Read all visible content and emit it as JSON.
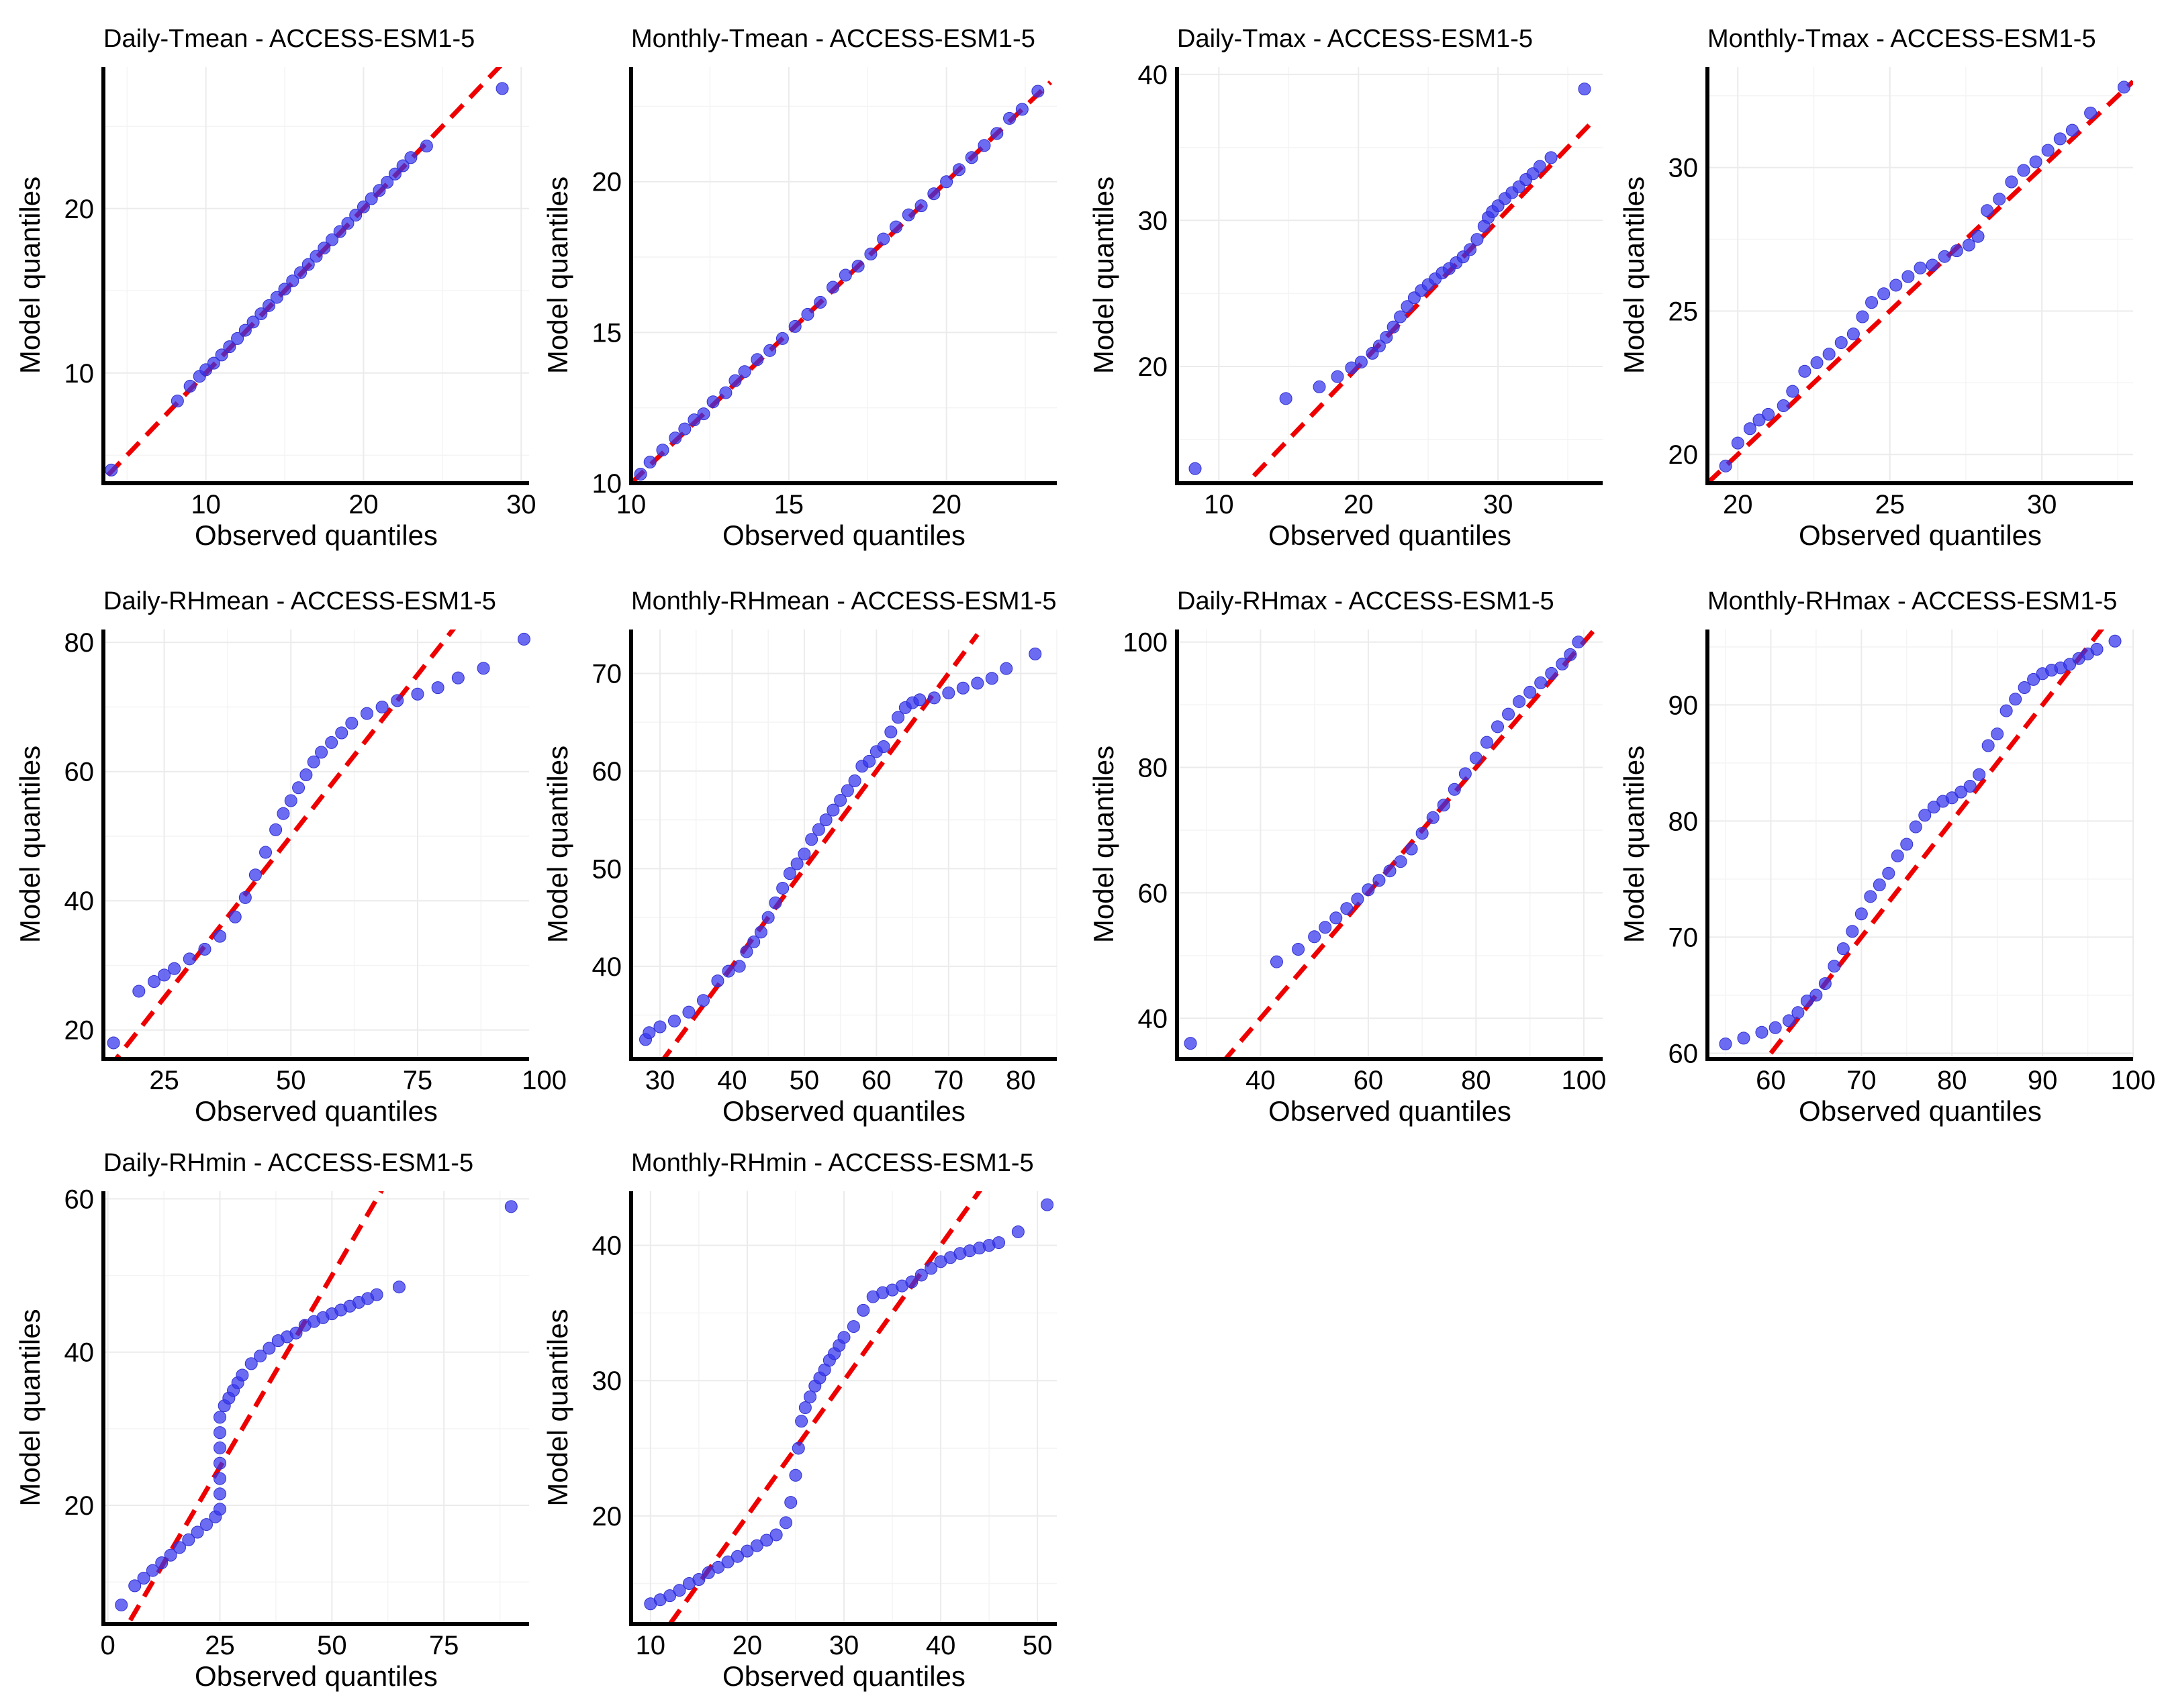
{
  "figure": {
    "model": "ACCESS-ESM1-5",
    "xlabel": "Observed quantiles",
    "ylabel": "Model quantiles",
    "reference_line_color": "#ee0000",
    "point_color": "#3333ee"
  },
  "chart_data": [
    {
      "type": "scatter",
      "title": "Daily-Tmean - ACCESS-ESM1-5",
      "xlabel": "Observed quantiles",
      "ylabel": "Model quantiles",
      "xlim": [
        3.5,
        30.5
      ],
      "ylim": [
        3.3,
        28.6
      ],
      "xticks": [
        10,
        20,
        30
      ],
      "yticks": [
        10,
        20
      ],
      "grid": true,
      "reference_line": {
        "from": [
          3.8,
          3.8
        ],
        "to": [
          29.2,
          29.2
        ]
      },
      "points": {
        "x": [
          4,
          8.2,
          9,
          9.6,
          10,
          10.5,
          11,
          11.5,
          12,
          12.5,
          13,
          13.5,
          14,
          14.5,
          15,
          15.5,
          16,
          16.5,
          17,
          17.5,
          18,
          18.5,
          19,
          19.5,
          20,
          20.5,
          21,
          21.5,
          22,
          22.5,
          23,
          24,
          28.8
        ],
        "y": [
          4.1,
          8.3,
          9.2,
          9.8,
          10.2,
          10.6,
          11.1,
          11.6,
          12.1,
          12.6,
          13.1,
          13.6,
          14.1,
          14.6,
          15.1,
          15.6,
          16.1,
          16.6,
          17.1,
          17.6,
          18.1,
          18.6,
          19.1,
          19.6,
          20.1,
          20.6,
          21.1,
          21.6,
          22.1,
          22.6,
          23.1,
          23.8,
          27.3
        ]
      }
    },
    {
      "type": "scatter",
      "title": "Monthly-Tmean - ACCESS-ESM1-5",
      "xlabel": "Observed quantiles",
      "ylabel": "Model quantiles",
      "xlim": [
        10,
        23.5
      ],
      "ylim": [
        10,
        23.8
      ],
      "xticks": [
        10,
        15,
        20
      ],
      "yticks": [
        10,
        15,
        20
      ],
      "grid": true,
      "reference_line": {
        "from": [
          10,
          10
        ],
        "to": [
          23.3,
          23.3
        ]
      },
      "points": {
        "x": [
          10.3,
          10.6,
          11,
          11.4,
          11.7,
          12,
          12.3,
          12.6,
          13,
          13.3,
          13.6,
          14,
          14.4,
          14.8,
          15.2,
          15.6,
          16,
          16.4,
          16.8,
          17.2,
          17.6,
          18,
          18.4,
          18.8,
          19.2,
          19.6,
          20,
          20.4,
          20.8,
          21.2,
          21.6,
          22,
          22.4,
          22.9
        ],
        "y": [
          10.3,
          10.7,
          11.1,
          11.5,
          11.8,
          12.1,
          12.3,
          12.7,
          13,
          13.4,
          13.7,
          14.1,
          14.4,
          14.8,
          15.2,
          15.6,
          16,
          16.5,
          16.9,
          17.2,
          17.6,
          18.1,
          18.5,
          18.9,
          19.2,
          19.6,
          20,
          20.4,
          20.8,
          21.2,
          21.6,
          22.1,
          22.4,
          23
        ]
      }
    },
    {
      "type": "scatter",
      "title": "Daily-Tmax - ACCESS-ESM1-5",
      "xlabel": "Observed quantiles",
      "ylabel": "Model quantiles",
      "xlim": [
        7,
        37.5
      ],
      "ylim": [
        12,
        40.5
      ],
      "xticks": [
        10,
        20,
        30
      ],
      "yticks": [
        20,
        30,
        40
      ],
      "grid": true,
      "reference_line": {
        "from": [
          12.5,
          12.5
        ],
        "to": [
          37,
          37
        ]
      },
      "points": {
        "x": [
          8.3,
          14.8,
          17.2,
          18.5,
          19.5,
          20.2,
          21,
          21.5,
          22,
          22.5,
          23,
          23.5,
          24,
          24.5,
          25,
          25.5,
          26,
          26.5,
          27,
          27.5,
          28,
          28.5,
          29,
          29.3,
          29.6,
          30,
          30.5,
          31,
          31.5,
          32,
          32.5,
          33,
          33.8,
          36.2
        ],
        "y": [
          13,
          17.8,
          18.6,
          19.3,
          19.9,
          20.3,
          20.9,
          21.4,
          22,
          22.7,
          23.4,
          24.1,
          24.7,
          25.2,
          25.6,
          26,
          26.4,
          26.7,
          27.1,
          27.5,
          28,
          28.7,
          29.6,
          30.2,
          30.6,
          31,
          31.5,
          31.9,
          32.3,
          32.8,
          33.2,
          33.7,
          34.3,
          39
        ]
      }
    },
    {
      "type": "scatter",
      "title": "Monthly-Tmax - ACCESS-ESM1-5",
      "xlabel": "Observed quantiles",
      "ylabel": "Model quantiles",
      "xlim": [
        19,
        33
      ],
      "ylim": [
        19,
        33.5
      ],
      "xticks": [
        20,
        25,
        30
      ],
      "yticks": [
        20,
        25,
        30
      ],
      "grid": true,
      "reference_line": {
        "from": [
          19,
          19
        ],
        "to": [
          33,
          33
        ]
      },
      "points": {
        "x": [
          19.6,
          20,
          20.4,
          20.7,
          21,
          21.5,
          21.8,
          22.2,
          22.6,
          23,
          23.4,
          23.8,
          24.1,
          24.4,
          24.8,
          25.2,
          25.6,
          26,
          26.4,
          26.8,
          27.2,
          27.6,
          27.9,
          28.2,
          28.6,
          29,
          29.4,
          29.8,
          30.2,
          30.6,
          31,
          31.6,
          32.7
        ],
        "y": [
          19.6,
          20.4,
          20.9,
          21.2,
          21.4,
          21.7,
          22.2,
          22.9,
          23.2,
          23.5,
          23.9,
          24.2,
          24.8,
          25.3,
          25.6,
          25.9,
          26.2,
          26.5,
          26.6,
          26.9,
          27.1,
          27.3,
          27.6,
          28.5,
          28.9,
          29.5,
          29.9,
          30.2,
          30.6,
          31,
          31.3,
          31.9,
          32.8
        ]
      }
    },
    {
      "type": "scatter",
      "title": "Daily-RHmean - ACCESS-ESM1-5",
      "xlabel": "Observed quantiles",
      "ylabel": "Model quantiles",
      "xlim": [
        13,
        97
      ],
      "ylim": [
        15.5,
        82
      ],
      "xticks": [
        25,
        50,
        75,
        100
      ],
      "yticks": [
        20,
        40,
        60,
        80
      ],
      "grid": true,
      "reference_line": {
        "from": [
          14,
          14
        ],
        "to": [
          84,
          84
        ]
      },
      "points": {
        "x": [
          15,
          20,
          23,
          25,
          27,
          30,
          33,
          36,
          39,
          41,
          43,
          45,
          47,
          48.5,
          50,
          51.5,
          53,
          54.5,
          56,
          58,
          60,
          62,
          65,
          68,
          71,
          75,
          79,
          83,
          88,
          96
        ],
        "y": [
          18,
          26,
          27.5,
          28.5,
          29.5,
          31,
          32.5,
          34.5,
          37.5,
          40.5,
          44,
          47.5,
          51,
          53.5,
          55.5,
          57.5,
          59.5,
          61.5,
          63,
          64.5,
          66,
          67.5,
          69,
          70,
          71,
          72,
          73,
          74.5,
          76,
          80.5
        ]
      }
    },
    {
      "type": "scatter",
      "title": "Monthly-RHmean - ACCESS-ESM1-5",
      "xlabel": "Observed quantiles",
      "ylabel": "Model quantiles",
      "xlim": [
        26,
        85
      ],
      "ylim": [
        30.5,
        74.5
      ],
      "xticks": [
        30,
        40,
        50,
        60,
        70,
        80
      ],
      "yticks": [
        40,
        50,
        60,
        70
      ],
      "grid": true,
      "reference_line": {
        "from": [
          30,
          30
        ],
        "to": [
          74,
          74
        ]
      },
      "points": {
        "x": [
          28,
          28.5,
          30,
          32,
          34,
          36,
          38,
          39.5,
          41,
          42,
          43,
          44,
          45,
          46,
          47,
          48,
          49,
          50,
          51,
          52,
          53,
          54,
          55,
          56,
          57,
          58,
          59,
          60,
          61,
          62,
          63,
          64,
          65,
          66,
          68,
          70,
          72,
          74,
          76,
          78,
          82
        ],
        "y": [
          32.5,
          33.2,
          33.8,
          34.4,
          35.3,
          36.5,
          38.5,
          39.5,
          40,
          41.5,
          42.5,
          43.5,
          45,
          46.5,
          48,
          49.5,
          50.5,
          51.5,
          53,
          54,
          55,
          56,
          57,
          58,
          59,
          60.5,
          61,
          62,
          62.5,
          64,
          65.5,
          66.5,
          67,
          67.3,
          67.5,
          68,
          68.5,
          69,
          69.5,
          70.5,
          72
        ]
      }
    },
    {
      "type": "scatter",
      "title": "Daily-RHmax - ACCESS-ESM1-5",
      "xlabel": "Observed quantiles",
      "ylabel": "Model quantiles",
      "xlim": [
        24.5,
        103.5
      ],
      "ylim": [
        33.5,
        102
      ],
      "xticks": [
        40,
        60,
        80,
        100
      ],
      "yticks": [
        40,
        60,
        80,
        100
      ],
      "grid": true,
      "reference_line": {
        "from": [
          33,
          33
        ],
        "to": [
          103,
          103
        ]
      },
      "points": {
        "x": [
          27,
          43,
          47,
          50,
          52,
          54,
          56,
          58,
          60,
          62,
          64,
          66,
          68,
          70,
          72,
          74,
          76,
          78,
          80,
          82,
          84,
          86,
          88,
          90,
          92,
          94,
          96,
          97.5,
          99
        ],
        "y": [
          36,
          49,
          51,
          53,
          54.5,
          56,
          57.5,
          59,
          60.5,
          62,
          63.5,
          65,
          67,
          69.5,
          72,
          74,
          76.5,
          79,
          81.5,
          84,
          86.5,
          88.5,
          90.5,
          92,
          93.5,
          95,
          96.5,
          98,
          100
        ]
      }
    },
    {
      "type": "scatter",
      "title": "Monthly-RHmax - ACCESS-ESM1-5",
      "xlabel": "Observed quantiles",
      "ylabel": "Model quantiles",
      "xlim": [
        53,
        100
      ],
      "ylim": [
        59.5,
        96.5
      ],
      "xticks": [
        60,
        70,
        80,
        90,
        100
      ],
      "yticks": [
        60,
        70,
        80,
        90
      ],
      "grid": true,
      "reference_line": {
        "from": [
          60,
          60
        ],
        "to": [
          97,
          97
        ]
      },
      "points": {
        "x": [
          55,
          57,
          59,
          60.5,
          62,
          63,
          64,
          65,
          66,
          67,
          68,
          69,
          70,
          71,
          72,
          73,
          74,
          75,
          76,
          77,
          78,
          79,
          80,
          81,
          82,
          83,
          84,
          85,
          86,
          87,
          88,
          89,
          90,
          91,
          92,
          93,
          94,
          95,
          96,
          98
        ],
        "y": [
          60.8,
          61.3,
          61.8,
          62.2,
          62.8,
          63.5,
          64.5,
          65,
          66,
          67.5,
          69,
          70.5,
          72,
          73.5,
          74.5,
          75.5,
          77,
          78,
          79.5,
          80.5,
          81.2,
          81.7,
          82,
          82.5,
          83,
          84,
          86.5,
          87.5,
          89.5,
          90.5,
          91.5,
          92.2,
          92.7,
          93,
          93.2,
          93.5,
          94,
          94.4,
          94.8,
          95.5
        ]
      }
    },
    {
      "type": "scatter",
      "title": "Daily-RHmin - ACCESS-ESM1-5",
      "xlabel": "Observed quantiles",
      "ylabel": "Model quantiles",
      "xlim": [
        -1,
        94
      ],
      "ylim": [
        4.5,
        61
      ],
      "xticks": [
        0,
        25,
        50,
        75
      ],
      "yticks": [
        20,
        40,
        60
      ],
      "grid": true,
      "reference_line": {
        "from": [
          5,
          5
        ],
        "to": [
          62,
          62
        ]
      },
      "points": {
        "x": [
          3,
          6,
          8,
          10,
          12,
          14,
          16,
          18,
          20,
          22,
          24,
          25,
          25,
          25,
          25,
          25,
          25,
          25,
          26,
          27,
          28,
          29,
          30,
          32,
          34,
          36,
          38,
          40,
          42,
          44,
          46,
          48,
          50,
          52,
          54,
          56,
          58,
          60,
          65,
          90
        ],
        "y": [
          7,
          9.5,
          10.5,
          11.5,
          12.5,
          13.5,
          14.5,
          15.5,
          16.5,
          17.5,
          18.5,
          19.5,
          21.5,
          23.5,
          25.5,
          27.5,
          29.5,
          31.5,
          33,
          34,
          35,
          36,
          37,
          38.5,
          39.5,
          40.5,
          41.5,
          42,
          42.5,
          43.5,
          44,
          44.5,
          45,
          45.5,
          46,
          46.5,
          47,
          47.5,
          48.5,
          59
        ]
      }
    },
    {
      "type": "scatter",
      "title": "Monthly-RHmin - ACCESS-ESM1-5",
      "xlabel": "Observed quantiles",
      "ylabel": "Model quantiles",
      "xlim": [
        8,
        52
      ],
      "ylim": [
        12,
        44
      ],
      "xticks": [
        10,
        20,
        30,
        40,
        50
      ],
      "yticks": [
        20,
        30,
        40
      ],
      "grid": true,
      "reference_line": {
        "from": [
          12,
          12
        ],
        "to": [
          45,
          45
        ]
      },
      "points": {
        "x": [
          10,
          11,
          12,
          13,
          14,
          15,
          16,
          17,
          18,
          19,
          20,
          21,
          22,
          23,
          24,
          24.5,
          25,
          25.3,
          25.6,
          26,
          26.5,
          27,
          27.5,
          28,
          28.5,
          29,
          29.5,
          30,
          31,
          32,
          33,
          34,
          35,
          36,
          37,
          38,
          39,
          40,
          41,
          42,
          43,
          44,
          45,
          46,
          48,
          51
        ],
        "y": [
          13.5,
          13.8,
          14.1,
          14.5,
          15,
          15.3,
          15.8,
          16.2,
          16.6,
          17,
          17.4,
          17.8,
          18.2,
          18.6,
          19.5,
          21,
          23,
          25,
          27,
          28,
          28.8,
          29.6,
          30.2,
          30.8,
          31.5,
          32,
          32.6,
          33.2,
          34,
          35.2,
          36.2,
          36.5,
          36.7,
          37,
          37.3,
          37.8,
          38.3,
          38.8,
          39.1,
          39.4,
          39.6,
          39.8,
          40,
          40.2,
          41,
          43
        ]
      }
    }
  ]
}
